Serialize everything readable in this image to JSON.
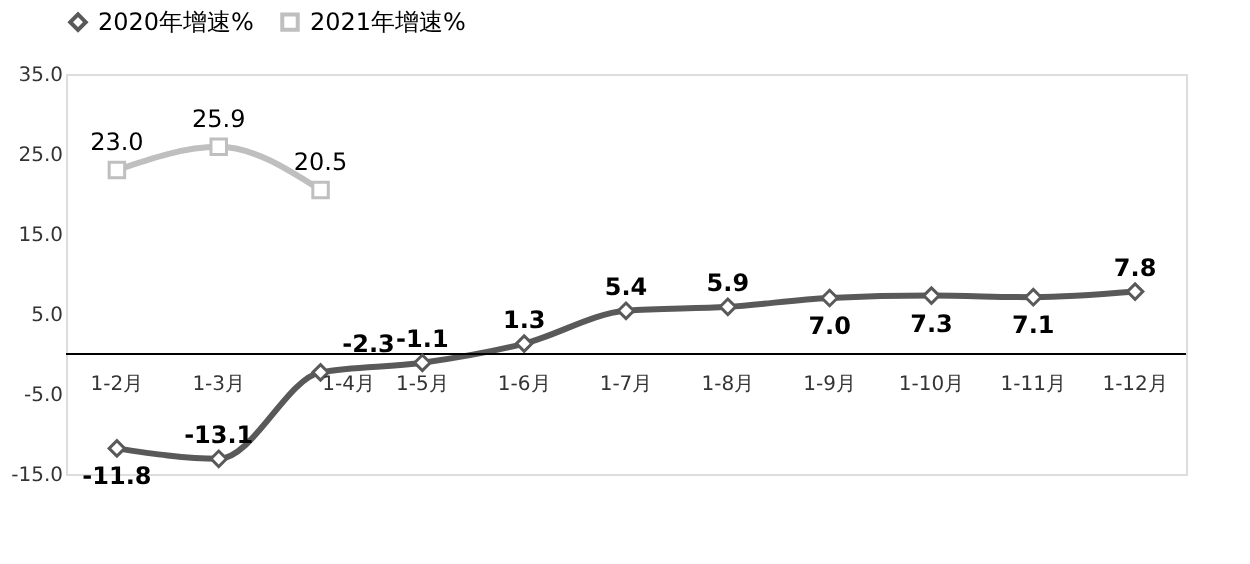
{
  "chart_data": {
    "type": "line",
    "categories": [
      "1-2月",
      "1-3月",
      "1-4月",
      "1-5月",
      "1-6月",
      "1-7月",
      "1-8月",
      "1-9月",
      "1-10月",
      "1-11月",
      "1-12月"
    ],
    "series": [
      {
        "name": "2020年增速%",
        "color": "#595959",
        "marker": "diamond",
        "values": [
          -11.8,
          -13.1,
          -2.3,
          -1.1,
          1.3,
          5.4,
          5.9,
          7.0,
          7.3,
          7.1,
          7.8
        ],
        "value_labels": [
          "-11.8",
          "-13.1",
          "-2.3",
          "-1.1",
          "1.3",
          "5.4",
          "5.9",
          "7.0",
          "7.3",
          "7.1",
          "7.8"
        ]
      },
      {
        "name": "2021年增速%",
        "color": "#bfbfbf",
        "marker": "square",
        "values": [
          23.0,
          25.9,
          20.5,
          null,
          null,
          null,
          null,
          null,
          null,
          null,
          null
        ],
        "value_labels": [
          "23.0",
          "25.9",
          "20.5",
          null,
          null,
          null,
          null,
          null,
          null,
          null,
          null
        ]
      }
    ],
    "ylim": [
      -15,
      35
    ],
    "yticks": [
      {
        "value": -15,
        "label": "-15.0"
      },
      {
        "value": -5,
        "label": "-5.0"
      },
      {
        "value": 5,
        "label": "5.0"
      },
      {
        "value": 15,
        "label": "15.0"
      },
      {
        "value": 25,
        "label": "25.0"
      },
      {
        "value": 35,
        "label": "35.0"
      }
    ],
    "legend": "top"
  }
}
